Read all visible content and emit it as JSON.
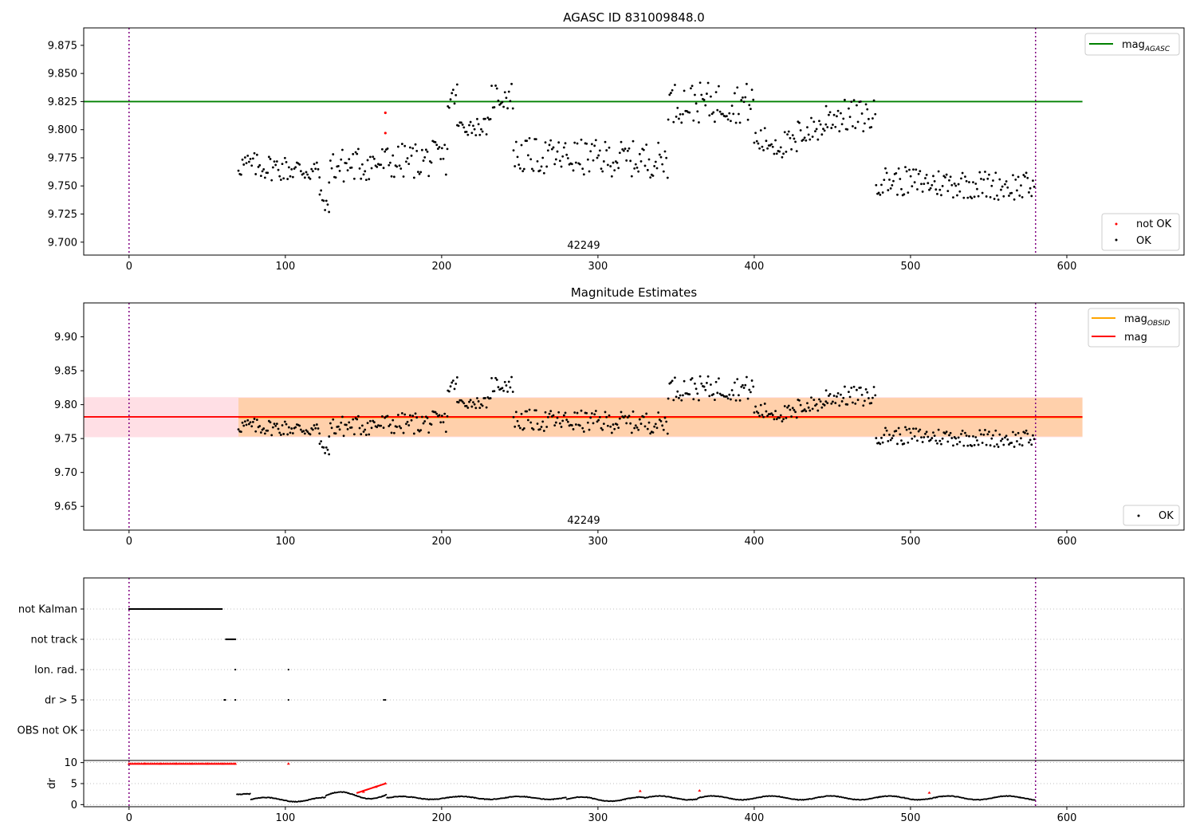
{
  "chart_data": [
    {
      "type": "scatter",
      "title": "AGASC ID 831009848.0",
      "xlabel": "",
      "ylabel": "",
      "xlim": [
        -29,
        675
      ],
      "ylim": [
        9.6885,
        9.8905
      ],
      "x_ticks": [
        "0",
        "100",
        "200",
        "300",
        "400",
        "500",
        "600"
      ],
      "y_ticks": [
        "9.700",
        "9.725",
        "9.750",
        "9.775",
        "9.800",
        "9.825",
        "9.850",
        "9.875"
      ],
      "annotation": "42249",
      "vlines_x": [
        0,
        580
      ],
      "hline": {
        "name": "mag_AGASC",
        "y": 9.825,
        "x_range": [
          -29,
          610
        ],
        "color": "#008000"
      },
      "legend_lines": [
        {
          "main": "mag",
          "sub": "AGASC",
          "color": "#008000"
        }
      ],
      "legend_points": [
        {
          "label": "not OK",
          "color": "#ff0000"
        },
        {
          "label": "OK",
          "color": "#000000"
        }
      ],
      "series": [
        {
          "name": "not OK",
          "color": "#ff0000",
          "points": [
            [
              164,
              9.815
            ],
            [
              164,
              9.797
            ]
          ]
        },
        {
          "name": "OK",
          "color": "#000000",
          "segments": [
            {
              "x": [
                70,
                122
              ],
              "base": 9.766,
              "trend": -0.006,
              "amp": 0.012
            },
            {
              "x": [
                122,
                128
              ],
              "base": 9.735,
              "trend": -0.015,
              "amp": 0.006
            },
            {
              "x": [
                128,
                204
              ],
              "base": 9.771,
              "trend": 0.008,
              "amp": 0.016
            },
            {
              "x": [
                204,
                210
              ],
              "base": 9.828,
              "trend": 0.01,
              "amp": 0.01
            },
            {
              "x": [
                210,
                232
              ],
              "base": 9.803,
              "trend": 0.0,
              "amp": 0.008
            },
            {
              "x": [
                232,
                246
              ],
              "base": 9.83,
              "trend": 0.0,
              "amp": 0.013
            },
            {
              "x": [
                246,
                345
              ],
              "base": 9.775,
              "trend": -0.004,
              "amp": 0.016
            },
            {
              "x": [
                345,
                400
              ],
              "base": 9.824,
              "trend": 0.0,
              "amp": 0.018
            },
            {
              "x": [
                400,
                428
              ],
              "base": 9.788,
              "trend": -0.006,
              "amp": 0.013
            },
            {
              "x": [
                428,
                446
              ],
              "base": 9.8,
              "trend": 0.006,
              "amp": 0.012
            },
            {
              "x": [
                446,
                478
              ],
              "base": 9.812,
              "trend": 0.0,
              "amp": 0.015
            },
            {
              "x": [
                478,
                580
              ],
              "base": 9.752,
              "trend": -0.006,
              "amp": 0.013
            }
          ]
        }
      ]
    },
    {
      "type": "scatter",
      "title": "Magnitude Estimates",
      "xlabel": "",
      "ylabel": "",
      "xlim": [
        -29,
        675
      ],
      "ylim": [
        9.615,
        9.95
      ],
      "x_ticks": [
        "0",
        "100",
        "200",
        "300",
        "400",
        "500",
        "600"
      ],
      "y_ticks": [
        "9.65",
        "9.70",
        "9.75",
        "9.80",
        "9.85",
        "9.90"
      ],
      "annotation": "42249",
      "vlines_x": [
        0,
        580
      ],
      "bands": [
        {
          "y": [
            9.752,
            9.811
          ],
          "x_range": [
            -29,
            610
          ],
          "color": "#ffc0cb",
          "opacity": 0.5
        },
        {
          "y": [
            9.753,
            9.81
          ],
          "x_range": [
            70,
            610
          ],
          "color": "#ffa500",
          "opacity": 0.25
        }
      ],
      "hlines": [
        {
          "name": "mag_OBSID",
          "y": 9.781,
          "x_range": [
            70,
            610
          ],
          "color": "#ffa500"
        },
        {
          "name": "mag",
          "y": 9.782,
          "x_range": [
            -29,
            610
          ],
          "color": "#ff0000"
        }
      ],
      "legend_lines": [
        {
          "main": "mag",
          "sub": "OBSID",
          "color": "#ffa500"
        },
        {
          "main": "mag",
          "sub": "",
          "color": "#ff0000"
        }
      ],
      "legend_points": [
        {
          "label": "OK",
          "color": "#000000"
        }
      ],
      "series": [
        {
          "name": "OK",
          "color": "#000000",
          "segments": [
            {
              "x": [
                70,
                122
              ],
              "base": 9.766,
              "trend": -0.006,
              "amp": 0.012
            },
            {
              "x": [
                122,
                128
              ],
              "base": 9.735,
              "trend": -0.015,
              "amp": 0.006
            },
            {
              "x": [
                128,
                204
              ],
              "base": 9.771,
              "trend": 0.008,
              "amp": 0.016
            },
            {
              "x": [
                204,
                210
              ],
              "base": 9.828,
              "trend": 0.01,
              "amp": 0.01
            },
            {
              "x": [
                210,
                232
              ],
              "base": 9.803,
              "trend": 0.0,
              "amp": 0.008
            },
            {
              "x": [
                232,
                246
              ],
              "base": 9.83,
              "trend": 0.0,
              "amp": 0.013
            },
            {
              "x": [
                246,
                345
              ],
              "base": 9.775,
              "trend": -0.004,
              "amp": 0.016
            },
            {
              "x": [
                345,
                400
              ],
              "base": 9.824,
              "trend": 0.0,
              "amp": 0.018
            },
            {
              "x": [
                400,
                428
              ],
              "base": 9.788,
              "trend": -0.006,
              "amp": 0.013
            },
            {
              "x": [
                428,
                446
              ],
              "base": 9.8,
              "trend": 0.006,
              "amp": 0.012
            },
            {
              "x": [
                446,
                478
              ],
              "base": 9.812,
              "trend": 0.0,
              "amp": 0.015
            },
            {
              "x": [
                478,
                580
              ],
              "base": 9.752,
              "trend": -0.006,
              "amp": 0.013
            }
          ]
        }
      ]
    },
    {
      "type": "scatter",
      "title": "",
      "xlabel": "",
      "ylabel": "",
      "xlim": [
        -29,
        675
      ],
      "categories": [
        "not Kalman",
        "not track",
        "Ion. rad.",
        "dr > 5",
        "OBS not OK"
      ],
      "vlines_x": [
        0,
        580
      ],
      "flags": [
        {
          "category": "not Kalman",
          "x_range": [
            0,
            60
          ],
          "points": []
        },
        {
          "category": "not track",
          "x_range": [
            62,
            68
          ],
          "points": []
        },
        {
          "category": "Ion. rad.",
          "points": [
            68,
            102
          ]
        },
        {
          "category": "dr > 5",
          "x_range": [
            61,
            62
          ],
          "points": [
            68,
            102,
            163,
            164
          ]
        },
        {
          "category": "OBS not OK",
          "points": []
        }
      ]
    },
    {
      "type": "scatter",
      "title": "",
      "xlabel": "",
      "ylabel": "dr",
      "xlim": [
        -29,
        675
      ],
      "ylim": [
        -0.5,
        10.5
      ],
      "x_ticks": [
        "0",
        "100",
        "200",
        "300",
        "400",
        "500",
        "600"
      ],
      "y_ticks": [
        "0",
        "5",
        "10"
      ],
      "vlines_x": [
        0,
        580
      ],
      "series": [
        {
          "name": "dr (flagged)",
          "color": "#ff0000",
          "points": [
            [
              0,
              9.7
            ],
            [
              10,
              9.7
            ],
            [
              20,
              9.7
            ],
            [
              30,
              9.7
            ],
            [
              40,
              9.7
            ],
            [
              50,
              9.7
            ],
            [
              60,
              9.7
            ],
            [
              68,
              9.7
            ],
            [
              102,
              9.7
            ],
            [
              150,
              3.0
            ],
            [
              158,
              4.2
            ],
            [
              164,
              5.0
            ],
            [
              327,
              3.2
            ],
            [
              365,
              3.3
            ],
            [
              512,
              2.8
            ]
          ]
        },
        {
          "name": "dr",
          "color": "#000000",
          "segments": [
            {
              "x": [
                69,
                78
              ],
              "base": 2.4,
              "amp": 0.15
            },
            {
              "x": [
                78,
                126
              ],
              "base": 1.2,
              "amp": 0.5
            },
            {
              "x": [
                126,
                165
              ],
              "base": 2.2,
              "amp": 0.8
            },
            {
              "x": [
                165,
                280
              ],
              "base": 1.6,
              "amp": 0.35
            },
            {
              "x": [
                280,
                330
              ],
              "base": 1.3,
              "amp": 0.5
            },
            {
              "x": [
                330,
                364
              ],
              "base": 1.6,
              "amp": 0.45
            },
            {
              "x": [
                364,
                580
              ],
              "base": 1.6,
              "amp": 0.45
            }
          ]
        }
      ]
    }
  ]
}
